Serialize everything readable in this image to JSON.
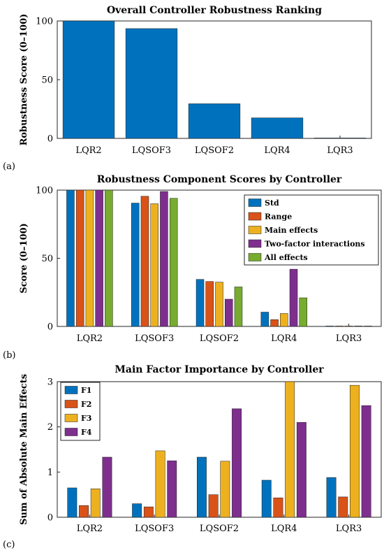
{
  "colors": {
    "blue": "#0072BD",
    "orange": "#D95319",
    "yellow": "#EDB120",
    "purple": "#7E2F8E",
    "green": "#77AC30"
  },
  "chart_data": [
    {
      "panel_label": "(a)",
      "type": "bar",
      "title": "Overall Controller Robustness Ranking",
      "xlabel": "",
      "ylabel": "Robustness Score (0–100)",
      "categories": [
        "LQR2",
        "LQSOF3",
        "LQSOF2",
        "LQR4",
        "LQR3"
      ],
      "series": [
        {
          "values": [
            100,
            93.5,
            29.5,
            17.5,
            0
          ]
        }
      ],
      "ylim": [
        0,
        100
      ],
      "yticks": [
        0,
        50,
        100
      ],
      "grid": false,
      "legend": null
    },
    {
      "panel_label": "(b)",
      "type": "bar",
      "title": "Robustness Component Scores by Controller",
      "xlabel": "",
      "ylabel": "Score (0–100)",
      "categories": [
        "LQR2",
        "LQSOF3",
        "LQSOF2",
        "LQR4",
        "LQR3"
      ],
      "series": [
        {
          "name": "Std",
          "values": [
            100,
            90.5,
            34.5,
            10.5,
            0
          ]
        },
        {
          "name": "Range",
          "values": [
            100,
            95.5,
            33,
            5,
            0
          ]
        },
        {
          "name": "Main effects",
          "values": [
            100,
            90,
            32.5,
            9.5,
            0
          ]
        },
        {
          "name": "Two-factor interactions",
          "values": [
            100,
            99,
            20,
            42,
            0
          ]
        },
        {
          "name": "All effects",
          "values": [
            100,
            94,
            29,
            21,
            0
          ]
        }
      ],
      "ylim": [
        0,
        100
      ],
      "yticks": [
        0,
        50,
        100
      ],
      "grid": false,
      "legend": "top-right"
    },
    {
      "panel_label": "(c)",
      "type": "bar",
      "title": "Main Factor Importance by Controller",
      "xlabel": "",
      "ylabel": "Sum of Absolute Main Effects",
      "categories": [
        "LQR2",
        "LQSOF3",
        "LQSOF2",
        "LQR4",
        "LQR3"
      ],
      "series": [
        {
          "name": "F1",
          "values": [
            0.65,
            0.3,
            1.33,
            0.82,
            0.88
          ]
        },
        {
          "name": "F2",
          "values": [
            0.26,
            0.23,
            0.5,
            0.43,
            0.45
          ]
        },
        {
          "name": "F3",
          "values": [
            0.63,
            1.47,
            1.24,
            3.0,
            2.92
          ]
        },
        {
          "name": "F4",
          "values": [
            1.33,
            1.25,
            2.4,
            2.1,
            2.47
          ]
        }
      ],
      "ylim": [
        0,
        3
      ],
      "yticks": [
        0,
        1,
        2,
        3
      ],
      "grid": false,
      "legend": "top-left"
    }
  ]
}
